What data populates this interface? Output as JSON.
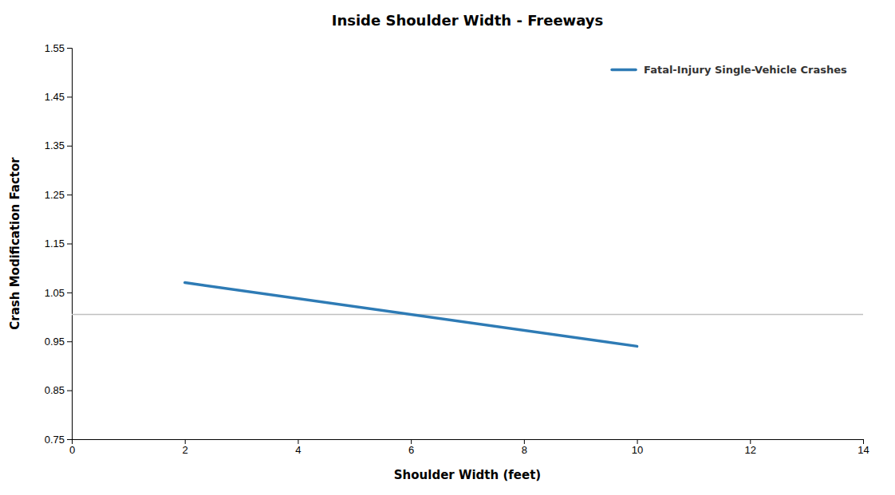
{
  "chart_data": {
    "type": "line",
    "title": "Inside Shoulder Width - Freeways",
    "xlabel": "Shoulder Width (feet)",
    "ylabel": "Crash Modification Factor",
    "x": [
      2,
      10
    ],
    "series": [
      {
        "name": "Fatal-Injury Single-Vehicle Crashes",
        "color": "#2E7BB5",
        "values": [
          1.07,
          0.94
        ]
      }
    ],
    "reference_lines": [
      {
        "y": 1.005,
        "color": "#C0C0C0"
      }
    ],
    "xlim": [
      0,
      14
    ],
    "ylim": [
      0.75,
      1.55
    ],
    "xticks": [
      0,
      2,
      4,
      6,
      8,
      10,
      12,
      14
    ],
    "yticks": [
      0.75,
      0.85,
      0.95,
      1.05,
      1.15,
      1.25,
      1.35,
      1.45,
      1.55
    ],
    "grid": false,
    "legend": "upper right"
  }
}
